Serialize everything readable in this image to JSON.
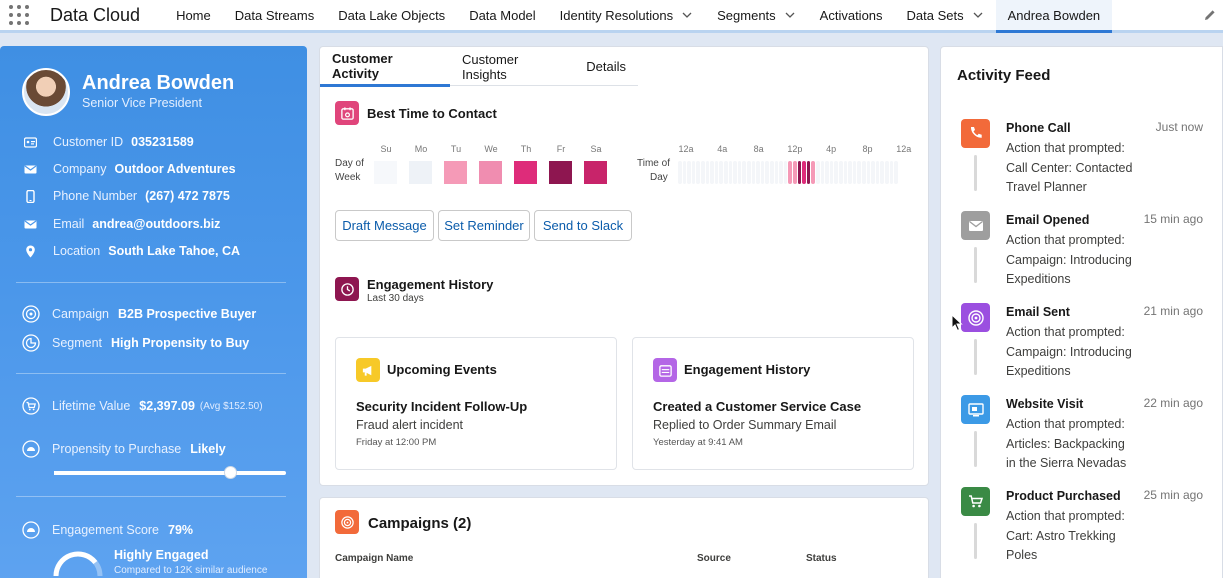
{
  "nav": {
    "app_name": "Data Cloud",
    "items": [
      {
        "label": "Home",
        "dropdown": false
      },
      {
        "label": "Data Streams",
        "dropdown": false
      },
      {
        "label": "Data Lake Objects",
        "dropdown": false
      },
      {
        "label": "Data Model",
        "dropdown": false
      },
      {
        "label": "Identity Resolutions",
        "dropdown": true
      },
      {
        "label": "Segments",
        "dropdown": true
      },
      {
        "label": "Activations",
        "dropdown": false
      },
      {
        "label": "Data Sets",
        "dropdown": true
      },
      {
        "label": "Andrea Bowden",
        "dropdown": false,
        "active": true
      }
    ]
  },
  "profile": {
    "name": "Andrea Bowden",
    "title": "Senior Vice President",
    "fields": [
      {
        "icon": "id-card-icon",
        "label": "Customer ID",
        "value": "035231589"
      },
      {
        "icon": "company-icon",
        "label": "Company",
        "value": "Outdoor Adventures"
      },
      {
        "icon": "phone-icon",
        "label": "Phone Number",
        "value": "(267) 472 7875"
      },
      {
        "icon": "email-icon",
        "label": "Email",
        "value": "andrea@outdoors.biz"
      },
      {
        "icon": "location-pin-icon",
        "label": "Location",
        "value": "South Lake Tahoe, CA"
      }
    ],
    "campaign": {
      "label": "Campaign",
      "value": "B2B Prospective Buyer"
    },
    "segment": {
      "label": "Segment",
      "value": "High Propensity to Buy"
    },
    "lifetime_value": {
      "label": "Lifetime Value",
      "value": "$2,397.09",
      "sub": "(Avg $152.50)"
    },
    "propensity": {
      "label": "Propensity to Purchase",
      "value": "Likely",
      "level": 0.76
    },
    "engagement": {
      "label": "Engagement Score",
      "value": "79%",
      "level": 0.79,
      "status": "Highly Engaged",
      "sub": "Compared to 12K similar audience"
    }
  },
  "tabs": [
    {
      "label": "Customer Activity",
      "active": true
    },
    {
      "label": "Customer Insights",
      "active": false
    },
    {
      "label": "Details",
      "active": false
    }
  ],
  "best_time": {
    "title": "Best Time to Contact",
    "day_label_1": "Day of",
    "day_label_2": "Week",
    "days": [
      "Su",
      "Mo",
      "Tu",
      "We",
      "Th",
      "Fr",
      "Sa"
    ],
    "day_colors": [
      "#f6f8fb",
      "#eef2f7",
      "#f59ab7",
      "#f08db0",
      "#de2c7a",
      "#8e1650",
      "#c8246a"
    ],
    "time_label_1": "Time of",
    "time_label_2": "Day",
    "hours": [
      "12a",
      "4a",
      "8a",
      "12p",
      "4p",
      "8p",
      "12a"
    ],
    "hour_levels": [
      0,
      0,
      0,
      0,
      0,
      0,
      0,
      0,
      0,
      0,
      0,
      0,
      0,
      0,
      0,
      0,
      0,
      0,
      0,
      0,
      0,
      0,
      0,
      0,
      0.35,
      0.55,
      0.9,
      0.75,
      0.95,
      0.4,
      0,
      0,
      0,
      0,
      0,
      0,
      0,
      0,
      0,
      0,
      0,
      0,
      0,
      0,
      0,
      0,
      0,
      0
    ]
  },
  "actions": {
    "draft": "Draft Message",
    "reminder": "Set Reminder",
    "slack": "Send to Slack"
  },
  "engagement_history": {
    "title": "Engagement History",
    "sub": "Last 30 days"
  },
  "cards": {
    "upcoming": {
      "title": "Upcoming Events",
      "main": "Security Incident Follow-Up",
      "desc": "Fraud alert incident",
      "time": "Friday at 12:00 PM"
    },
    "history": {
      "title": "Engagement History",
      "main": "Created a Customer Service Case",
      "desc": "Replied to Order Summary Email",
      "time": "Yesterday at 9:41 AM"
    }
  },
  "campaigns": {
    "title": "Campaigns (2)",
    "columns": [
      "Campaign Name",
      "Source",
      "Status"
    ]
  },
  "feed": {
    "title": "Activity Feed",
    "items": [
      {
        "icon": "phone-call-icon",
        "color": "#f26a3a",
        "title": "Phone Call",
        "time": "Just now",
        "lines": [
          "Action that prompted:",
          "Call Center: Contacted",
          "Travel Planner"
        ]
      },
      {
        "icon": "email-icon",
        "color": "#9e9e9e",
        "title": "Email Opened",
        "time": "15 min ago",
        "lines": [
          "Action that prompted:",
          "Campaign: Introducing",
          "Expeditions"
        ]
      },
      {
        "icon": "target-icon",
        "color": "#9b4fe0",
        "title": "Email Sent",
        "time": "21 min ago",
        "lines": [
          "Action that prompted:",
          "Campaign: Introducing",
          "Expeditions"
        ]
      },
      {
        "icon": "monitor-icon",
        "color": "#3c9ae6",
        "title": "Website Visit",
        "time": "22 min ago",
        "lines": [
          "Action that prompted:",
          "Articles: Backpacking",
          "in the Sierra Nevadas"
        ]
      },
      {
        "icon": "cart-icon",
        "color": "#3a8a45",
        "title": "Product Purchased",
        "time": "25 min ago",
        "lines": [
          "Action that prompted:",
          "Cart: Astro Trekking",
          "Poles"
        ]
      }
    ]
  }
}
